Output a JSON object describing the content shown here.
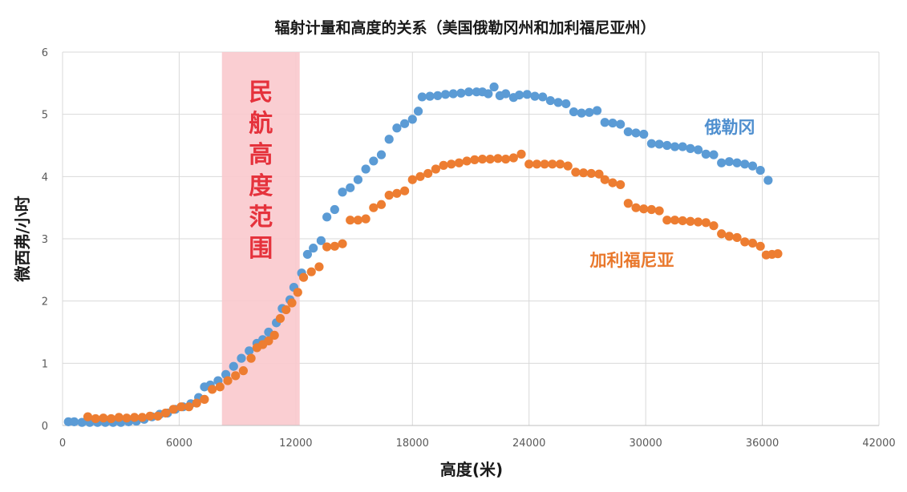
{
  "chart_data": {
    "type": "scatter",
    "title": "辐射计量和高度的关系（美国俄勒冈州和加利福尼亚州）",
    "xlabel": "高度(米)",
    "ylabel": "微西弗/小时",
    "xlim": [
      0,
      42000
    ],
    "ylim": [
      0,
      6
    ],
    "xticks": [
      0,
      6000,
      12000,
      18000,
      24000,
      30000,
      36000,
      42000
    ],
    "yticks": [
      0,
      1,
      2,
      3,
      4,
      5,
      6
    ],
    "grid": true,
    "band": {
      "x_start": 8200,
      "x_end": 12200,
      "label": "民航高度范围",
      "color": "#f9c9cd"
    },
    "series": [
      {
        "name": "俄勒冈",
        "color": "#5b9bd5",
        "label_color": "#4f8fcf",
        "points": [
          [
            300,
            0.06
          ],
          [
            600,
            0.06
          ],
          [
            1000,
            0.05
          ],
          [
            1400,
            0.05
          ],
          [
            1800,
            0.05
          ],
          [
            2200,
            0.05
          ],
          [
            2600,
            0.05
          ],
          [
            3000,
            0.05
          ],
          [
            3400,
            0.06
          ],
          [
            3800,
            0.07
          ],
          [
            4200,
            0.1
          ],
          [
            4600,
            0.14
          ],
          [
            5000,
            0.18
          ],
          [
            5400,
            0.2
          ],
          [
            5800,
            0.26
          ],
          [
            6200,
            0.3
          ],
          [
            6600,
            0.35
          ],
          [
            7000,
            0.45
          ],
          [
            7300,
            0.62
          ],
          [
            7600,
            0.65
          ],
          [
            8000,
            0.72
          ],
          [
            8400,
            0.82
          ],
          [
            8800,
            0.95
          ],
          [
            9200,
            1.08
          ],
          [
            9600,
            1.2
          ],
          [
            10000,
            1.32
          ],
          [
            10300,
            1.38
          ],
          [
            10600,
            1.5
          ],
          [
            11000,
            1.65
          ],
          [
            11300,
            1.88
          ],
          [
            11700,
            2.02
          ],
          [
            11900,
            2.22
          ],
          [
            12300,
            2.45
          ],
          [
            12600,
            2.75
          ],
          [
            12900,
            2.85
          ],
          [
            13300,
            2.97
          ],
          [
            13600,
            3.35
          ],
          [
            14000,
            3.47
          ],
          [
            14400,
            3.75
          ],
          [
            14800,
            3.82
          ],
          [
            15200,
            3.95
          ],
          [
            15600,
            4.12
          ],
          [
            16000,
            4.25
          ],
          [
            16400,
            4.35
          ],
          [
            16800,
            4.6
          ],
          [
            17200,
            4.78
          ],
          [
            17600,
            4.85
          ],
          [
            18000,
            4.92
          ],
          [
            18300,
            5.05
          ],
          [
            18500,
            5.28
          ],
          [
            18900,
            5.29
          ],
          [
            19300,
            5.3
          ],
          [
            19700,
            5.32
          ],
          [
            20100,
            5.33
          ],
          [
            20500,
            5.34
          ],
          [
            20900,
            5.36
          ],
          [
            21300,
            5.36
          ],
          [
            21600,
            5.36
          ],
          [
            21900,
            5.33
          ],
          [
            22200,
            5.44
          ],
          [
            22500,
            5.3
          ],
          [
            22800,
            5.33
          ],
          [
            23200,
            5.27
          ],
          [
            23500,
            5.31
          ],
          [
            23900,
            5.32
          ],
          [
            24300,
            5.29
          ],
          [
            24700,
            5.28
          ],
          [
            25100,
            5.22
          ],
          [
            25500,
            5.19
          ],
          [
            25900,
            5.17
          ],
          [
            26300,
            5.04
          ],
          [
            26700,
            5.02
          ],
          [
            27100,
            5.03
          ],
          [
            27500,
            5.06
          ],
          [
            27900,
            4.87
          ],
          [
            28300,
            4.86
          ],
          [
            28700,
            4.84
          ],
          [
            29100,
            4.72
          ],
          [
            29500,
            4.7
          ],
          [
            29900,
            4.68
          ],
          [
            30300,
            4.53
          ],
          [
            30700,
            4.52
          ],
          [
            31100,
            4.5
          ],
          [
            31500,
            4.48
          ],
          [
            31900,
            4.48
          ],
          [
            32300,
            4.45
          ],
          [
            32700,
            4.43
          ],
          [
            33100,
            4.36
          ],
          [
            33500,
            4.35
          ],
          [
            33900,
            4.22
          ],
          [
            34300,
            4.24
          ],
          [
            34700,
            4.22
          ],
          [
            35100,
            4.2
          ],
          [
            35500,
            4.17
          ],
          [
            35900,
            4.1
          ],
          [
            36300,
            3.94
          ]
        ]
      },
      {
        "name": "加利福尼亚",
        "color": "#ed7d31",
        "label_color": "#e9782c",
        "points": [
          [
            1300,
            0.14
          ],
          [
            1700,
            0.11
          ],
          [
            2100,
            0.12
          ],
          [
            2500,
            0.11
          ],
          [
            2900,
            0.13
          ],
          [
            3300,
            0.12
          ],
          [
            3700,
            0.13
          ],
          [
            4100,
            0.13
          ],
          [
            4500,
            0.15
          ],
          [
            4900,
            0.15
          ],
          [
            5300,
            0.2
          ],
          [
            5700,
            0.26
          ],
          [
            6100,
            0.3
          ],
          [
            6500,
            0.3
          ],
          [
            6900,
            0.36
          ],
          [
            7300,
            0.42
          ],
          [
            7700,
            0.58
          ],
          [
            8100,
            0.62
          ],
          [
            8500,
            0.72
          ],
          [
            8900,
            0.8
          ],
          [
            9300,
            0.88
          ],
          [
            9700,
            1.08
          ],
          [
            10000,
            1.25
          ],
          [
            10300,
            1.3
          ],
          [
            10600,
            1.36
          ],
          [
            10900,
            1.45
          ],
          [
            11200,
            1.72
          ],
          [
            11500,
            1.86
          ],
          [
            11800,
            1.97
          ],
          [
            12100,
            2.14
          ],
          [
            12400,
            2.38
          ],
          [
            12800,
            2.47
          ],
          [
            13200,
            2.55
          ],
          [
            13600,
            2.87
          ],
          [
            14000,
            2.88
          ],
          [
            14400,
            2.92
          ],
          [
            14800,
            3.3
          ],
          [
            15200,
            3.3
          ],
          [
            15600,
            3.32
          ],
          [
            16000,
            3.5
          ],
          [
            16400,
            3.55
          ],
          [
            16800,
            3.7
          ],
          [
            17200,
            3.73
          ],
          [
            17600,
            3.77
          ],
          [
            18000,
            3.95
          ],
          [
            18400,
            4.0
          ],
          [
            18800,
            4.05
          ],
          [
            19200,
            4.12
          ],
          [
            19600,
            4.18
          ],
          [
            20000,
            4.2
          ],
          [
            20400,
            4.22
          ],
          [
            20800,
            4.25
          ],
          [
            21200,
            4.27
          ],
          [
            21600,
            4.28
          ],
          [
            22000,
            4.28
          ],
          [
            22400,
            4.29
          ],
          [
            22800,
            4.28
          ],
          [
            23200,
            4.3
          ],
          [
            23600,
            4.36
          ],
          [
            24000,
            4.2
          ],
          [
            24400,
            4.2
          ],
          [
            24800,
            4.2
          ],
          [
            25200,
            4.2
          ],
          [
            25600,
            4.2
          ],
          [
            26000,
            4.17
          ],
          [
            26400,
            4.07
          ],
          [
            26800,
            4.06
          ],
          [
            27200,
            4.05
          ],
          [
            27600,
            4.04
          ],
          [
            27900,
            3.95
          ],
          [
            28300,
            3.9
          ],
          [
            28700,
            3.87
          ],
          [
            29100,
            3.57
          ],
          [
            29500,
            3.5
          ],
          [
            29900,
            3.48
          ],
          [
            30300,
            3.47
          ],
          [
            30700,
            3.45
          ],
          [
            31100,
            3.3
          ],
          [
            31500,
            3.3
          ],
          [
            31900,
            3.29
          ],
          [
            32300,
            3.28
          ],
          [
            32700,
            3.27
          ],
          [
            33100,
            3.26
          ],
          [
            33500,
            3.21
          ],
          [
            33900,
            3.08
          ],
          [
            34300,
            3.04
          ],
          [
            34700,
            3.02
          ],
          [
            35100,
            2.95
          ],
          [
            35500,
            2.93
          ],
          [
            35900,
            2.88
          ],
          [
            36200,
            2.74
          ],
          [
            36500,
            2.75
          ],
          [
            36800,
            2.76
          ]
        ]
      }
    ]
  }
}
